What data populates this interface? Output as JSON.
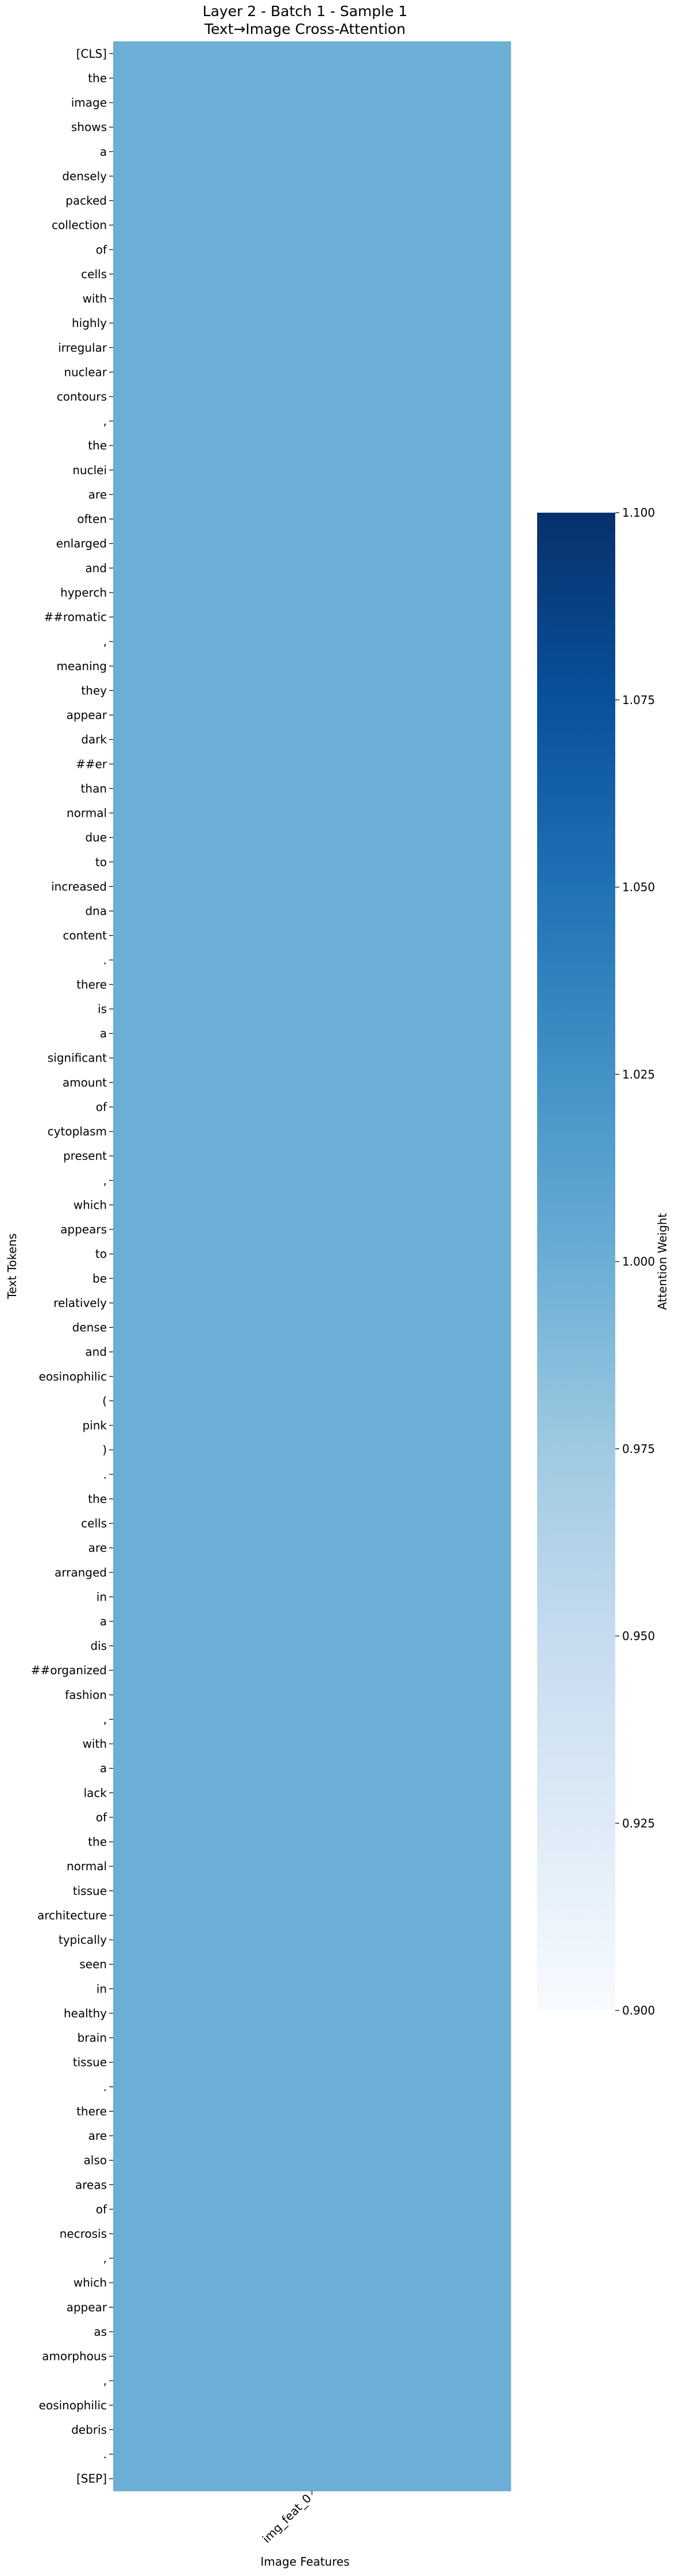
{
  "chart_data": {
    "type": "heatmap",
    "title": "Layer 2 - Batch 1 - Sample 1",
    "subtitle": "Text→Image Cross-Attention",
    "xlabel": "Image Features",
    "ylabel": "Text Tokens",
    "x_categories": [
      "img_feat_0"
    ],
    "y_categories": [
      "[CLS]",
      "the",
      "image",
      "shows",
      "a",
      "densely",
      "packed",
      "collection",
      "of",
      "cells",
      "with",
      "highly",
      "irregular",
      "nuclear",
      "contours",
      ",",
      "the",
      "nuclei",
      "are",
      "often",
      "enlarged",
      "and",
      "hyperch",
      "##romatic",
      ",",
      "meaning",
      "they",
      "appear",
      "dark",
      "##er",
      "than",
      "normal",
      "due",
      "to",
      "increased",
      "dna",
      "content",
      ".",
      "there",
      "is",
      "a",
      "significant",
      "amount",
      "of",
      "cytoplasm",
      "present",
      ",",
      "which",
      "appears",
      "to",
      "be",
      "relatively",
      "dense",
      "and",
      "eosinophilic",
      "(",
      "pink",
      ")",
      ".",
      "the",
      "cells",
      "are",
      "arranged",
      "in",
      "a",
      "dis",
      "##organized",
      "fashion",
      ",",
      "with",
      "a",
      "lack",
      "of",
      "the",
      "normal",
      "tissue",
      "architecture",
      "typically",
      "seen",
      "in",
      "healthy",
      "brain",
      "tissue",
      ".",
      "there",
      "are",
      "also",
      "areas",
      "of",
      "necrosis",
      ",",
      "which",
      "appear",
      "as",
      "amorphous",
      ",",
      "eosinophilic",
      "debris",
      ".",
      "[SEP]"
    ],
    "values_all": 1.0,
    "cell_color": "#6baed6",
    "colorbar": {
      "label": "Attention Weight",
      "range": [
        0.9,
        1.1
      ],
      "ticks": [
        "0.900",
        "0.925",
        "0.950",
        "0.975",
        "1.000",
        "1.025",
        "1.050",
        "1.075",
        "1.100"
      ],
      "colormap": "Blues",
      "gradient": [
        "#f7fbff",
        "#deebf7",
        "#c6dbef",
        "#9ecae1",
        "#6baed6",
        "#4292c6",
        "#2171b5",
        "#08519c",
        "#08306b"
      ]
    }
  }
}
